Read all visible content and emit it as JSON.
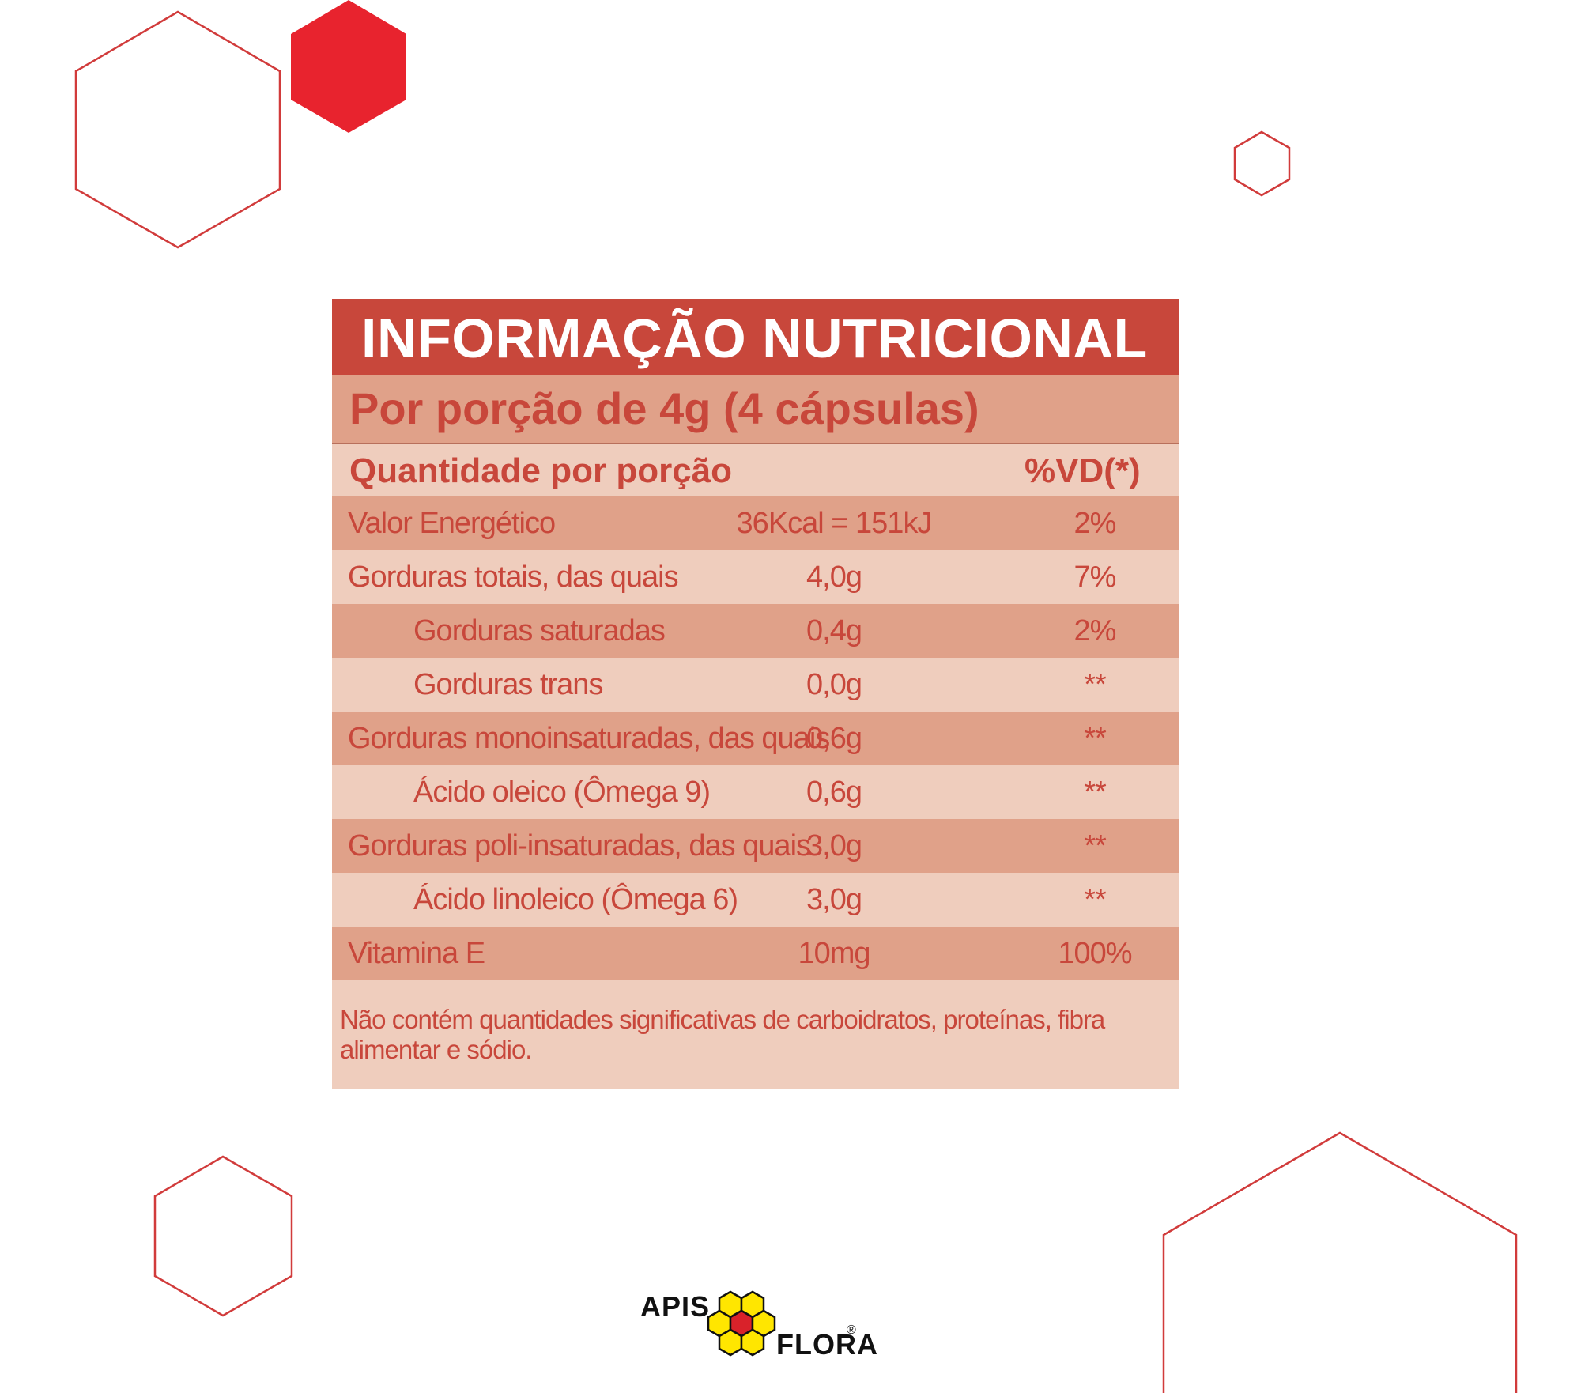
{
  "table": {
    "title": "INFORMAÇÃO NUTRICIONAL",
    "serving": "Por porção de 4g (4 cápsulas)",
    "header": {
      "quantity": "Quantidade por porção",
      "dv": "%VD(*)"
    },
    "rows": [
      {
        "label": "Valor Energético",
        "amount": "36Kcal = 151kJ",
        "dv": "2%"
      },
      {
        "label": "Gorduras totais, das quais",
        "amount": "4,0g",
        "dv": "7%"
      },
      {
        "label": "Gorduras saturadas",
        "amount": "0,4g",
        "dv": "2%"
      },
      {
        "label": "Gorduras trans",
        "amount": "0,0g",
        "dv": "**"
      },
      {
        "label": "Gorduras monoinsaturadas, das quais",
        "amount": "0,6g",
        "dv": "**"
      },
      {
        "label": "Ácido oleico (Ômega 9)",
        "amount": "0,6g",
        "dv": "**"
      },
      {
        "label": "Gorduras poli-insaturadas, das quais",
        "amount": "3,0g",
        "dv": "**"
      },
      {
        "label": "Ácido linoleico (Ômega 6)",
        "amount": "3,0g",
        "dv": "**"
      },
      {
        "label": "Vitamina E",
        "amount": "10mg",
        "dv": "100%"
      }
    ],
    "footnote": "Não contém quantidades significativas de carboidratos, proteínas, fibra alimentar e sódio."
  },
  "logo": {
    "word_top": "APIS",
    "word_bottom": "FLORA",
    "registered": "®"
  },
  "colors": {
    "accent_red": "#c8473b",
    "bright_red": "#e8232e",
    "row_dark": "#e0a189",
    "row_light": "#efcdbd",
    "honeycomb_yellow": "#ffe600"
  }
}
